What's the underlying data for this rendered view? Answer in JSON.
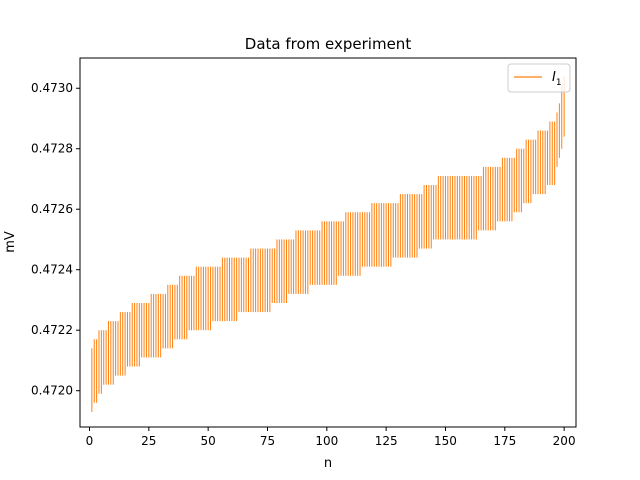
{
  "chart_data": {
    "type": "errorbar",
    "title": "Data from experiment",
    "xlabel": "n",
    "ylabel": "mV",
    "xlim": [
      -4,
      205
    ],
    "ylim": [
      0.47188,
      0.4731
    ],
    "xticks": [
      0,
      25,
      50,
      75,
      100,
      125,
      150,
      175,
      200
    ],
    "xtick_labels": [
      "0",
      "25",
      "50",
      "75",
      "100",
      "125",
      "150",
      "175",
      "200"
    ],
    "yticks": [
      0.472,
      0.4722,
      0.4724,
      0.4726,
      0.4728,
      0.473
    ],
    "ytick_labels": [
      "0.4720",
      "0.4722",
      "0.4724",
      "0.4726",
      "0.4728",
      "0.4730"
    ],
    "grid": false,
    "legend": {
      "position": "top-right",
      "entries": [
        "I"
      ],
      "subscript": "1"
    },
    "series": [
      {
        "name": "I",
        "color": "#ff7f0e",
        "x_range": [
          1,
          200
        ],
        "knots": [
          {
            "x": 1,
            "low": 0.47194,
            "high": 0.47214
          },
          {
            "x": 5,
            "low": 0.472,
            "high": 0.4722
          },
          {
            "x": 10,
            "low": 0.47203,
            "high": 0.47223
          },
          {
            "x": 15,
            "low": 0.47206,
            "high": 0.47226
          },
          {
            "x": 20,
            "low": 0.47209,
            "high": 0.47229
          },
          {
            "x": 30,
            "low": 0.47212,
            "high": 0.47232
          },
          {
            "x": 40,
            "low": 0.47218,
            "high": 0.47238
          },
          {
            "x": 50,
            "low": 0.47221,
            "high": 0.47241
          },
          {
            "x": 60,
            "low": 0.47224,
            "high": 0.47244
          },
          {
            "x": 75,
            "low": 0.47227,
            "high": 0.47247
          },
          {
            "x": 90,
            "low": 0.47233,
            "high": 0.47253
          },
          {
            "x": 100,
            "low": 0.47235,
            "high": 0.47255
          },
          {
            "x": 112,
            "low": 0.47239,
            "high": 0.47259
          },
          {
            "x": 125,
            "low": 0.47242,
            "high": 0.47262
          },
          {
            "x": 137,
            "low": 0.47245,
            "high": 0.47265
          },
          {
            "x": 150,
            "low": 0.47251,
            "high": 0.47271
          },
          {
            "x": 162,
            "low": 0.47251,
            "high": 0.47271
          },
          {
            "x": 170,
            "low": 0.47254,
            "high": 0.47274
          },
          {
            "x": 178,
            "low": 0.47257,
            "high": 0.47277
          },
          {
            "x": 185,
            "low": 0.47263,
            "high": 0.47283
          },
          {
            "x": 192,
            "low": 0.47266,
            "high": 0.47286
          },
          {
            "x": 196,
            "low": 0.47269,
            "high": 0.47289
          },
          {
            "x": 200,
            "low": 0.47284,
            "high": 0.47304
          }
        ]
      }
    ]
  }
}
